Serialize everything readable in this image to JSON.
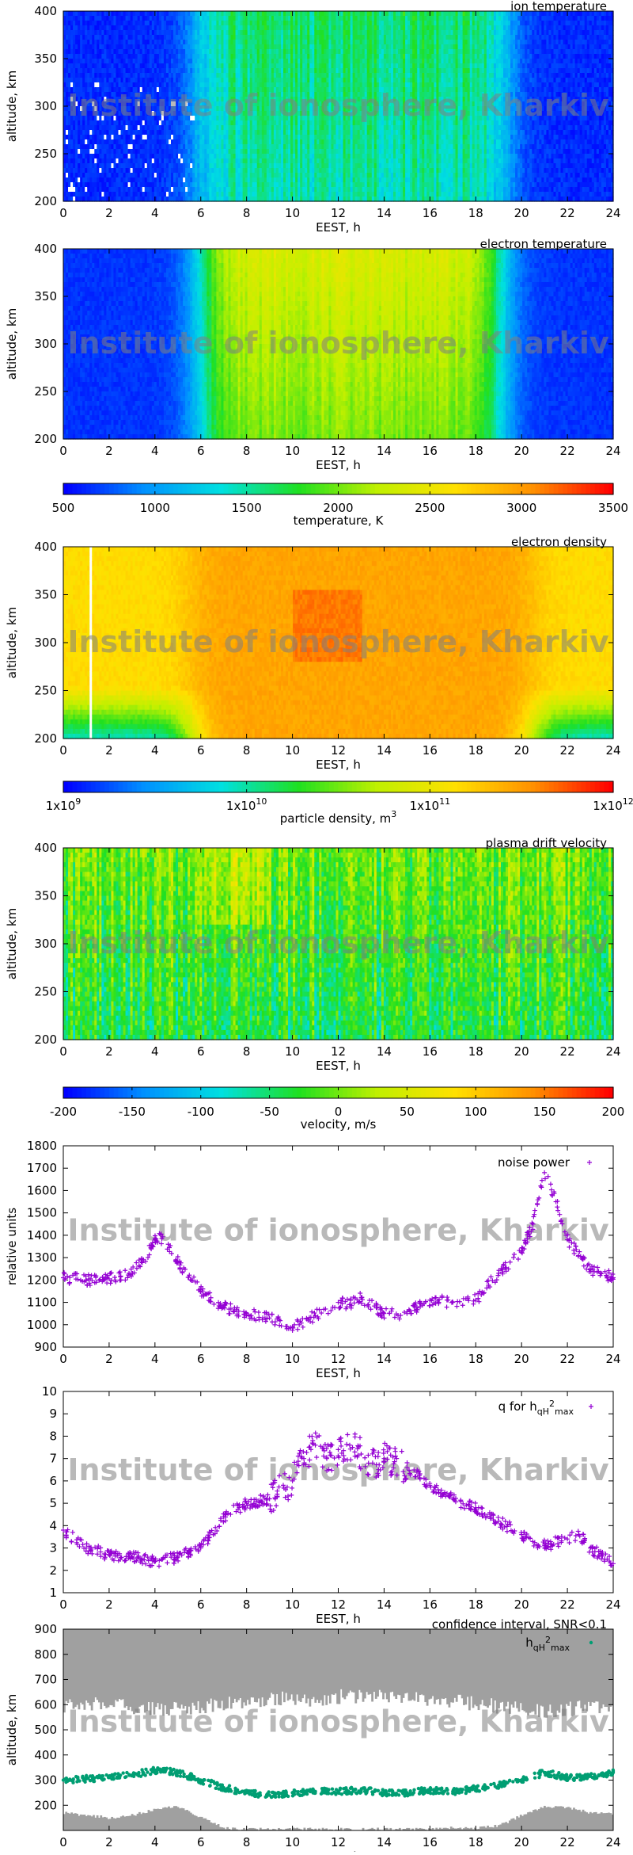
{
  "watermark": "Institute of ionosphere, Kharkiv",
  "colors": {
    "scale": [
      "#0000ff",
      "#0090ff",
      "#00e0e0",
      "#20e020",
      "#c0f000",
      "#ffe000",
      "#ff9000",
      "#ff0000"
    ],
    "purple": "#9400d3",
    "teal": "#009e73",
    "gray": "#a0a0a0",
    "background_blue": "#0000ff",
    "watermark": "#808080"
  },
  "chart_data": [
    {
      "type": "heatmap",
      "title": "ion temperature",
      "xlabel": "EEST, h",
      "ylabel": "altitude, km",
      "xlim": [
        0,
        24
      ],
      "ylim": [
        200,
        400
      ],
      "xticks": [
        0,
        2,
        4,
        6,
        8,
        10,
        12,
        14,
        16,
        18,
        20,
        22,
        24
      ],
      "yticks": [
        200,
        250,
        300,
        350,
        400
      ],
      "description_level": "low at night, moderate/green-cyan from ~6 to ~19 h"
    },
    {
      "type": "heatmap",
      "title": "electron temperature",
      "xlabel": "EEST, h",
      "ylabel": "altitude, km",
      "xlim": [
        0,
        24
      ],
      "ylim": [
        200,
        400
      ],
      "xticks": [
        0,
        2,
        4,
        6,
        8,
        10,
        12,
        14,
        16,
        18,
        20,
        22,
        24
      ],
      "yticks": [
        200,
        250,
        300,
        350,
        400
      ],
      "colorbar": {
        "label": "temperature, K",
        "ticks": [
          "500",
          "1000",
          "1500",
          "2000",
          "2500",
          "3000",
          "3500"
        ],
        "range": [
          500,
          3500
        ]
      }
    },
    {
      "type": "heatmap",
      "title": "electron density",
      "xlabel": "EEST, h",
      "ylabel": "altitude, km",
      "xlim": [
        0,
        24
      ],
      "ylim": [
        200,
        400
      ],
      "xticks": [
        0,
        2,
        4,
        6,
        8,
        10,
        12,
        14,
        16,
        18,
        20,
        22,
        24
      ],
      "yticks": [
        200,
        250,
        300,
        350,
        400
      ],
      "colorbar": {
        "label": "particle density, m",
        "label_sup": "3",
        "ticks": [
          {
            "base": "1x10",
            "exp": "9"
          },
          {
            "base": "1x10",
            "exp": "10"
          },
          {
            "base": "1x10",
            "exp": "11"
          },
          {
            "base": "1x10",
            "exp": "12"
          }
        ]
      }
    },
    {
      "type": "heatmap",
      "title": "plasma drift velocity",
      "xlabel": "EEST, h",
      "ylabel": "altitude, km",
      "xlim": [
        0,
        24
      ],
      "ylim": [
        200,
        400
      ],
      "xticks": [
        0,
        2,
        4,
        6,
        8,
        10,
        12,
        14,
        16,
        18,
        20,
        22,
        24
      ],
      "yticks": [
        200,
        250,
        300,
        350,
        400
      ],
      "colorbar": {
        "label": "velocity, m/s",
        "ticks": [
          "-200",
          "-150",
          "-100",
          "-50",
          "0",
          "50",
          "100",
          "150",
          "200"
        ],
        "range": [
          -200,
          200
        ]
      }
    },
    {
      "type": "scatter",
      "legend": "noise power",
      "xlabel": "EEST, h",
      "ylabel": "relative units",
      "xlim": [
        0,
        24
      ],
      "ylim": [
        900,
        1800
      ],
      "xticks": [
        0,
        2,
        4,
        6,
        8,
        10,
        12,
        14,
        16,
        18,
        20,
        22,
        24
      ],
      "yticks": [
        900,
        1000,
        1100,
        1200,
        1300,
        1400,
        1500,
        1600,
        1700,
        1800
      ],
      "x": [
        0,
        1,
        2,
        3,
        3.5,
        4,
        4.3,
        5,
        6,
        7,
        8,
        9,
        10,
        11,
        12,
        12.5,
        13,
        14,
        15,
        16,
        17,
        18,
        19,
        19.5,
        20,
        20.5,
        21,
        21.5,
        22,
        23,
        24
      ],
      "y": [
        1210,
        1200,
        1205,
        1230,
        1290,
        1380,
        1385,
        1280,
        1150,
        1080,
        1050,
        1030,
        990,
        1040,
        1100,
        1090,
        1120,
        1050,
        1050,
        1110,
        1100,
        1110,
        1230,
        1280,
        1330,
        1450,
        1680,
        1550,
        1380,
        1250,
        1210
      ]
    },
    {
      "type": "scatter",
      "legend": "q for h",
      "legend_sub": "qH",
      "legend_sup": "2",
      "legend_sub2": "max",
      "xlabel": "EEST, h",
      "ylabel": "",
      "xlim": [
        0,
        24
      ],
      "ylim": [
        1,
        10
      ],
      "xticks": [
        0,
        2,
        4,
        6,
        8,
        10,
        12,
        14,
        16,
        18,
        20,
        22,
        24
      ],
      "yticks": [
        1,
        2,
        3,
        4,
        5,
        6,
        7,
        8,
        9,
        10
      ],
      "x": [
        0,
        1,
        2,
        3,
        4,
        5,
        6,
        7,
        8,
        9,
        10,
        10.5,
        11,
        11.5,
        12,
        12.5,
        13,
        13.5,
        14,
        15,
        16,
        17,
        18,
        19,
        20,
        21,
        22,
        22.5,
        23,
        24
      ],
      "y": [
        3.8,
        3.0,
        2.7,
        2.6,
        2.4,
        2.6,
        3.0,
        4.4,
        5.0,
        5.2,
        6.0,
        7.0,
        7.6,
        7.0,
        7.4,
        7.6,
        7.2,
        6.8,
        7.0,
        6.6,
        5.8,
        5.2,
        4.8,
        4.2,
        3.6,
        3.1,
        3.4,
        3.6,
        3.0,
        2.3
      ]
    },
    {
      "type": "scatter",
      "title": "confidence interval, SNR<0.1",
      "legend": "h",
      "legend_sub": "qH",
      "legend_sup": "2",
      "legend_sub2": "max",
      "xlabel": "EEST, h",
      "ylabel": "altitude, km",
      "xlim": [
        0,
        24
      ],
      "ylim": [
        100,
        900
      ],
      "xticks": [
        0,
        2,
        4,
        6,
        8,
        10,
        12,
        14,
        16,
        18,
        20,
        22,
        24
      ],
      "yticks": [
        200,
        300,
        400,
        500,
        600,
        700,
        800,
        900
      ],
      "x": [
        0,
        1,
        2,
        3,
        4,
        5,
        6,
        7,
        8,
        9,
        10,
        11,
        12,
        13,
        14,
        15,
        16,
        17,
        18,
        19,
        20,
        21,
        22,
        23,
        24
      ],
      "y": [
        300,
        305,
        310,
        320,
        340,
        330,
        300,
        270,
        250,
        240,
        250,
        255,
        255,
        260,
        250,
        250,
        260,
        255,
        265,
        280,
        300,
        330,
        310,
        315,
        330
      ],
      "band_upper": [
        580,
        590,
        590,
        580,
        570,
        570,
        580,
        590,
        600,
        610,
        610,
        610,
        620,
        620,
        620,
        610,
        610,
        600,
        590,
        580,
        570,
        560,
        570,
        580,
        580
      ],
      "band_lower": [
        170,
        160,
        150,
        160,
        185,
        195,
        150,
        110,
        105,
        105,
        105,
        105,
        105,
        105,
        105,
        105,
        105,
        110,
        110,
        120,
        160,
        195,
        190,
        170,
        165
      ]
    }
  ]
}
